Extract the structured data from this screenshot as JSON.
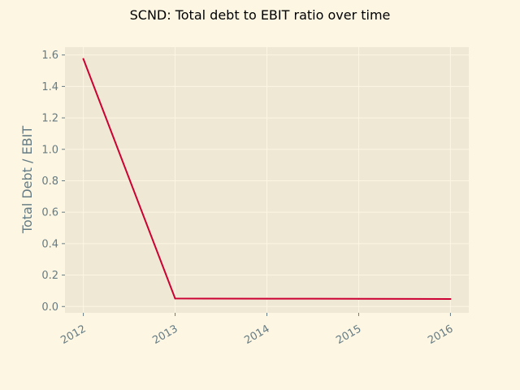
{
  "chart_data": {
    "type": "line",
    "title": "SCND: Total debt to EBIT ratio over time",
    "xlabel": "",
    "ylabel": "Total Debt / EBIT",
    "x": [
      "2012",
      "2013",
      "2014",
      "2015",
      "2016"
    ],
    "x_ticks": [
      "2012",
      "2013",
      "2014",
      "2015",
      "2016"
    ],
    "y_ticks": [
      "0.0",
      "0.2",
      "0.4",
      "0.6",
      "0.8",
      "1.0",
      "1.2",
      "1.4",
      "1.6"
    ],
    "xlim": [
      2011.8,
      2016.2
    ],
    "ylim": [
      -0.04,
      1.65
    ],
    "grid": true,
    "series": [
      {
        "values": [
          1.575,
          0.051,
          0.05,
          0.049,
          0.048
        ],
        "color": "#cc0033"
      }
    ]
  },
  "colors": {
    "figure_background": "#fdf6e3",
    "plot_background": "#eee8d5",
    "grid": "#fdf6e3",
    "text": "#657b83",
    "line": "#cc0033"
  }
}
